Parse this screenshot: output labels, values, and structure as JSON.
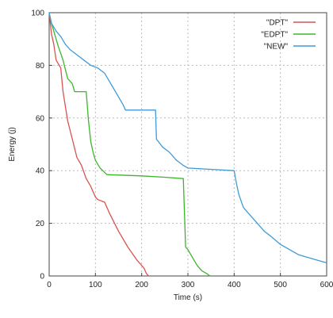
{
  "chart_data": {
    "type": "line",
    "xlabel": "Time (s)",
    "ylabel": "Energy (j)",
    "xlim": [
      0,
      600
    ],
    "ylim": [
      0,
      100
    ],
    "xticks": [
      0,
      100,
      200,
      300,
      400,
      500,
      600
    ],
    "yticks": [
      0,
      20,
      40,
      60,
      80,
      100
    ],
    "grid": "dotted",
    "legend_position": "top-right",
    "series": [
      {
        "name": "\"DPT\"",
        "color": "#d9534f",
        "x": [
          0,
          5,
          10,
          15,
          25,
          30,
          40,
          50,
          60,
          70,
          80,
          90,
          95,
          100,
          105,
          120,
          130,
          150,
          170,
          190,
          205,
          210,
          215
        ],
        "y": [
          100,
          92,
          88,
          82,
          79,
          70,
          59,
          52,
          45,
          42,
          37,
          34,
          32,
          30,
          29,
          28,
          24,
          17,
          11,
          6,
          3,
          1,
          0
        ]
      },
      {
        "name": "\"EDPT\"",
        "color": "#3cb62a",
        "x": [
          0,
          5,
          10,
          20,
          30,
          40,
          50,
          55,
          60,
          80,
          85,
          90,
          95,
          100,
          110,
          125,
          200,
          250,
          290,
          295,
          300,
          310,
          320,
          330,
          340,
          348
        ],
        "y": [
          100,
          96,
          93,
          87,
          82,
          75,
          73,
          70,
          70,
          70,
          59,
          51,
          47,
          44,
          41,
          38.5,
          38,
          37.5,
          37,
          11,
          10,
          7,
          4,
          2,
          1,
          0
        ]
      },
      {
        "name": "\"NEW\"",
        "color": "#3f9bd8",
        "x": [
          0,
          5,
          15,
          25,
          35,
          45,
          60,
          75,
          90,
          105,
          120,
          130,
          140,
          150,
          160,
          165,
          185,
          200,
          230,
          232,
          245,
          260,
          275,
          290,
          300,
          400,
          405,
          410,
          420,
          430,
          450,
          465,
          480,
          500,
          520,
          540,
          560,
          580,
          600
        ],
        "y": [
          100,
          96,
          93,
          91,
          88,
          86,
          84,
          82,
          80,
          79,
          77,
          74,
          71,
          68,
          65,
          63,
          63,
          63,
          63,
          52,
          49,
          47,
          44,
          42,
          41,
          40,
          35,
          31,
          26,
          24,
          20,
          17,
          15,
          12,
          10,
          8,
          7,
          6,
          5
        ]
      }
    ]
  }
}
